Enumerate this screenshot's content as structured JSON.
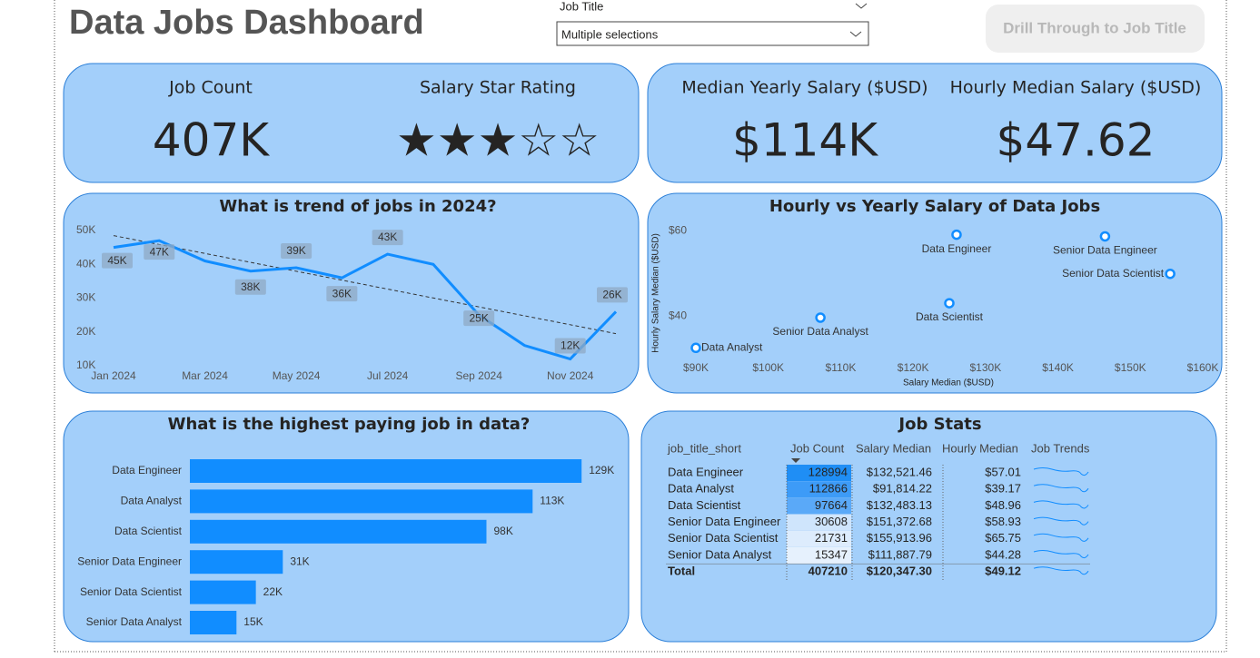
{
  "header": {
    "title": "Data Jobs Dashboard",
    "filter_label": "Job Title",
    "filter_value": "Multiple selections",
    "button": "Drill Through to Job Title"
  },
  "kpis": [
    {
      "label": "Job Count",
      "value": "407K"
    },
    {
      "label": "Salary Star Rating",
      "value": "★★★☆☆"
    },
    {
      "label": "Median Yearly Salary ($USD)",
      "value": "$114K"
    },
    {
      "label": "Hourly Median Salary ($USD)",
      "value": "$47.62"
    }
  ],
  "chart_data": [
    {
      "type": "line",
      "title": "What is trend of jobs in 2024?",
      "categories": [
        "Jan 2024",
        null,
        "Mar 2024",
        null,
        "May 2024",
        null,
        "Jul 2024",
        null,
        "Sep 2024",
        null,
        "Nov 2024",
        null
      ],
      "values": [
        45000,
        47000,
        41000,
        38000,
        39000,
        36000,
        43000,
        40000,
        25000,
        16000,
        12000,
        26000
      ],
      "value_labels": [
        "45K",
        "47K",
        null,
        "38K",
        "39K",
        "36K",
        "43K",
        null,
        "25K",
        null,
        "12K",
        "26K"
      ],
      "color": "#118dff",
      "trendline": true,
      "ylim": [
        10000,
        50000
      ],
      "yticks": [
        {
          "value": 10000,
          "label": "10K"
        },
        {
          "value": 20000,
          "label": "20K"
        },
        {
          "value": 30000,
          "label": "30K"
        },
        {
          "value": 40000,
          "label": "40K"
        },
        {
          "value": 50000,
          "label": "50K"
        }
      ]
    },
    {
      "type": "scatter",
      "title": "Hourly vs Yearly Salary of Data Jobs",
      "x_label": "Salary Median ($USD)",
      "y_label": "Hourly Salary Median ($USD)",
      "labels": [
        "Data Engineer",
        "Senior Data Engineer",
        "Senior Data Scientist",
        "Data Scientist",
        "Senior Data Analyst",
        "Data Analyst"
      ],
      "x": [
        126000,
        146500,
        155500,
        125000,
        107200,
        90000
      ],
      "y": [
        59.1,
        58.7,
        49.9,
        43.0,
        39.6,
        32.5
      ],
      "color": "#118dff",
      "xlim": [
        90000,
        160000
      ],
      "xticks": [
        {
          "value": 90000,
          "label": "$90K"
        },
        {
          "value": 100000,
          "label": "$100K"
        },
        {
          "value": 110000,
          "label": "$110K"
        },
        {
          "value": 120000,
          "label": "$120K"
        },
        {
          "value": 130000,
          "label": "$130K"
        },
        {
          "value": 140000,
          "label": "$140K"
        },
        {
          "value": 150000,
          "label": "$150K"
        },
        {
          "value": 160000,
          "label": "$160K"
        }
      ],
      "ylim": [
        30,
        62
      ],
      "yticks": [
        {
          "value": 40,
          "label": "$40"
        },
        {
          "value": 60,
          "label": "$60"
        }
      ]
    },
    {
      "type": "bar",
      "horizontal": true,
      "title": "What is the highest paying job in data?",
      "categories": [
        "Data Engineer",
        "Data Analyst",
        "Data Scientist",
        "Senior Data Engineer",
        "Senior Data Scientist",
        "Senior Data Analyst"
      ],
      "values": [
        128994,
        112866,
        97664,
        30608,
        21731,
        15347
      ],
      "value_labels": [
        "129K",
        "113K",
        "98K",
        "31K",
        "22K",
        "15K"
      ],
      "color": "#118dff",
      "xlim": [
        0,
        140000
      ]
    }
  ],
  "table": {
    "title": "Job Stats",
    "columns": [
      "job_title_short",
      "Job Count",
      "Salary Median",
      "Hourly Median",
      "Job Trends"
    ],
    "rows": [
      [
        "Data Engineer",
        "128994",
        "$132,521.46",
        "$57.01"
      ],
      [
        "Data Analyst",
        "112866",
        "$91,814.22",
        "$39.17"
      ],
      [
        "Data Scientist",
        "97664",
        "$132,483.13",
        "$48.96"
      ],
      [
        "Senior Data Engineer",
        "30608",
        "$151,372.68",
        "$58.93"
      ],
      [
        "Senior Data Scientist",
        "21731",
        "$155,913.96",
        "$65.75"
      ],
      [
        "Senior Data Analyst",
        "15347",
        "$111,887.79",
        "$44.28"
      ]
    ],
    "total": [
      "Total",
      "407210",
      "$120,347.30",
      "$49.12"
    ],
    "count_colors": [
      "#1f8ef5",
      "#3d9bf7",
      "#5aa9f8",
      "#cfe5fc",
      "#ddecfd",
      "#e6f1fd"
    ]
  }
}
